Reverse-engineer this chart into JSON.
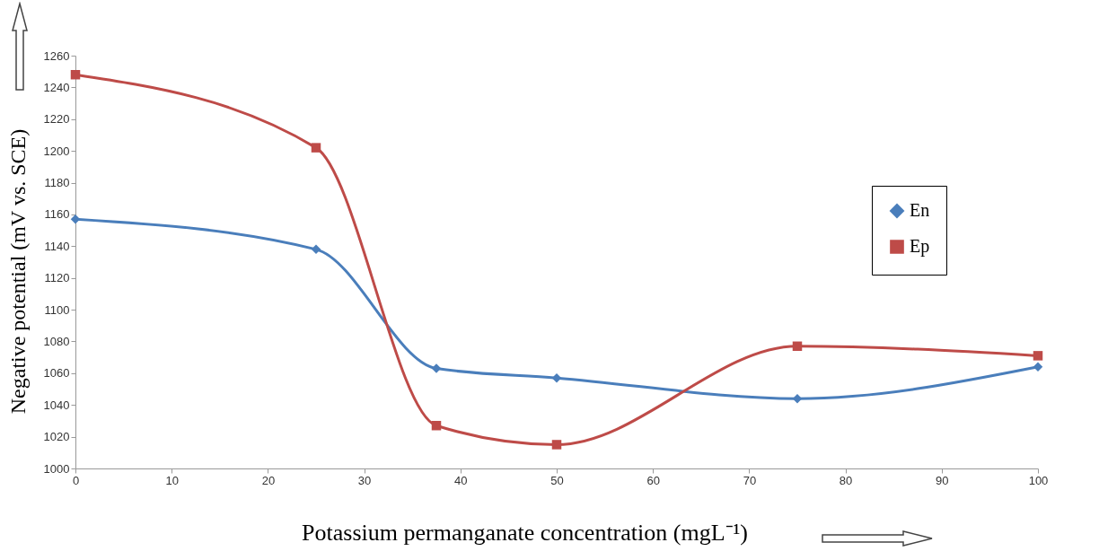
{
  "chart_data": {
    "type": "line",
    "xlabel": "Potassium permanganate concentration (mgL⁻¹)",
    "ylabel": "Negative potential (mV vs. SCE)",
    "x": [
      0,
      25,
      37.5,
      50,
      75,
      100
    ],
    "series": [
      {
        "name": "En",
        "color": "#4a7ebb",
        "marker": "diamond",
        "values": [
          1157,
          1138,
          1063,
          1057,
          1044,
          1064
        ]
      },
      {
        "name": "Ep",
        "color": "#be4b48",
        "marker": "square",
        "values": [
          1248,
          1202,
          1027,
          1015,
          1077,
          1071
        ]
      }
    ],
    "xlim": [
      0,
      100
    ],
    "xticks": [
      0,
      10,
      20,
      30,
      40,
      50,
      60,
      70,
      80,
      90,
      100
    ],
    "ylim": [
      1000,
      1260
    ],
    "yticks": [
      1000,
      1020,
      1040,
      1060,
      1080,
      1100,
      1120,
      1140,
      1160,
      1180,
      1200,
      1220,
      1240,
      1260
    ],
    "grid": false,
    "legend": "right",
    "line_style": "solid"
  }
}
